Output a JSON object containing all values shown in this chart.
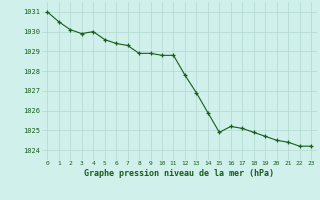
{
  "x": [
    0,
    1,
    2,
    3,
    4,
    5,
    6,
    7,
    8,
    9,
    10,
    11,
    12,
    13,
    14,
    15,
    16,
    17,
    18,
    19,
    20,
    21,
    22,
    23
  ],
  "y": [
    1031.0,
    1030.5,
    1030.1,
    1029.9,
    1030.0,
    1029.6,
    1029.4,
    1029.3,
    1028.9,
    1028.9,
    1028.8,
    1028.8,
    1027.8,
    1026.9,
    1025.9,
    1024.9,
    1025.2,
    1025.1,
    1024.9,
    1024.7,
    1024.5,
    1024.4,
    1024.2,
    1024.2
  ],
  "line_color": "#1a5c1a",
  "marker_color": "#1a5c1a",
  "bg_color": "#d0f0eb",
  "grid_color": "#b0d8d0",
  "xlabel": "Graphe pression niveau de la mer (hPa)",
  "xlabel_color": "#1a5c1a",
  "tick_label_color": "#1a5c1a",
  "ylim": [
    1023.5,
    1031.5
  ],
  "yticks": [
    1024,
    1025,
    1026,
    1027,
    1028,
    1029,
    1030,
    1031
  ],
  "xticks": [
    0,
    1,
    2,
    3,
    4,
    5,
    6,
    7,
    8,
    9,
    10,
    11,
    12,
    13,
    14,
    15,
    16,
    17,
    18,
    19,
    20,
    21,
    22,
    23
  ],
  "xlim": [
    -0.5,
    23.5
  ]
}
